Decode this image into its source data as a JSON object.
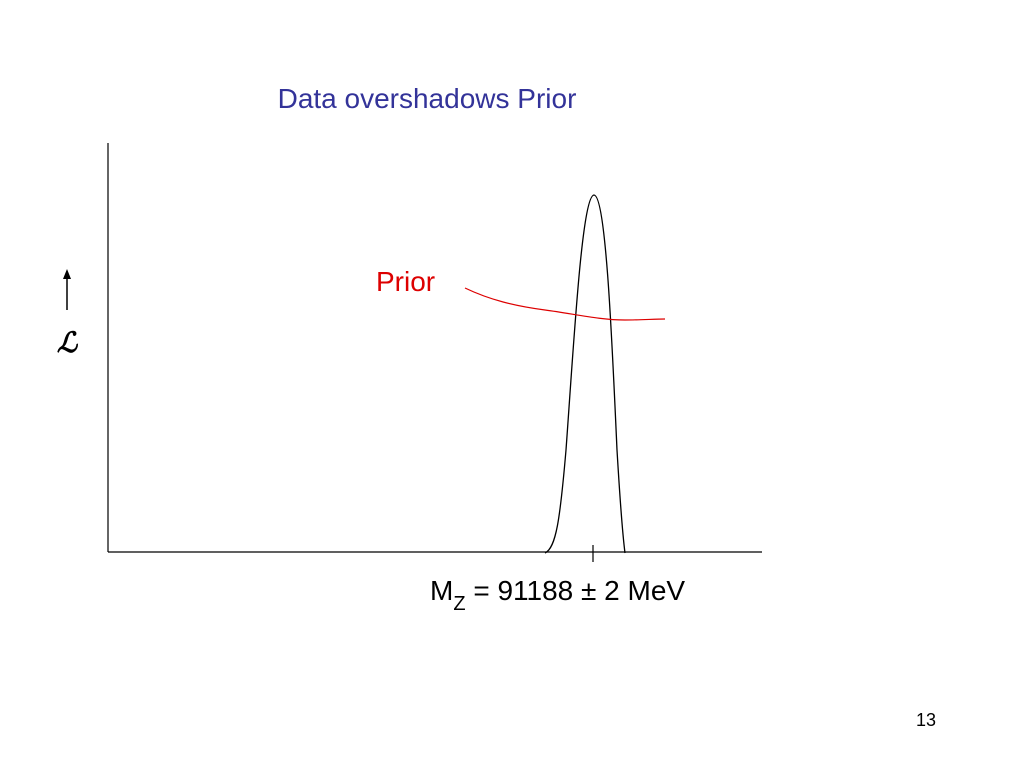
{
  "title": "Data overshadows Prior",
  "prior_label": "Prior",
  "y_axis_symbol": "ℒ",
  "x_axis_label": {
    "main": "M",
    "sub": "Z",
    "rest": " = 91188 ± 2 MeV"
  },
  "page_number": "13"
}
